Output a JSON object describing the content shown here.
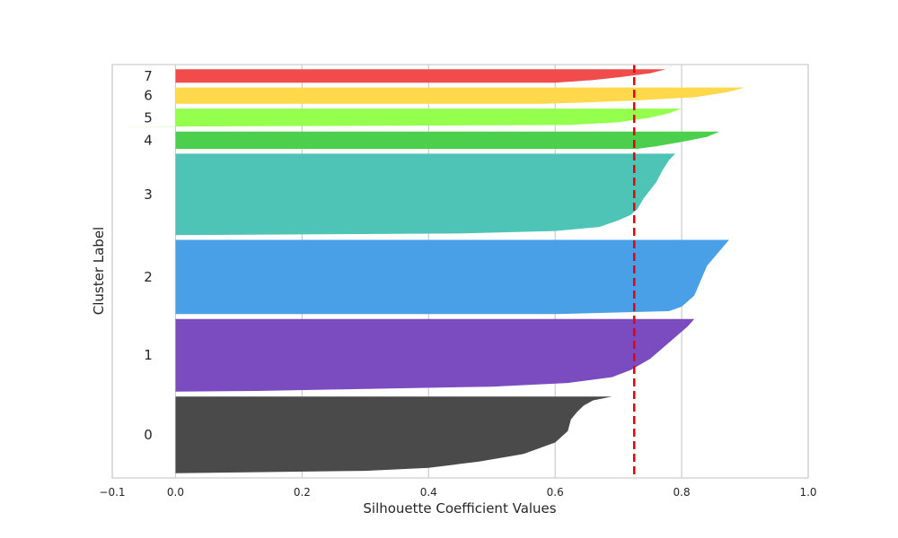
{
  "chart_data": {
    "type": "area",
    "title": "",
    "xlabel": "Silhouette Coefficient Values",
    "ylabel": "Cluster Label",
    "xlim": [
      -0.1,
      1.0
    ],
    "xticks": [
      "−0.1",
      "0.0",
      "0.2",
      "0.4",
      "0.6",
      "0.8",
      "1.0"
    ],
    "xtick_values": [
      -0.1,
      0.0,
      0.2,
      0.4,
      0.6,
      0.8,
      1.0
    ],
    "grid": true,
    "average_silhouette": 0.725,
    "average_line_color": "#e3000f",
    "clusters": [
      {
        "label": "0",
        "color": "#4a4a4a",
        "size": 160,
        "max": 0.69,
        "profile": [
          [
            0.0,
            0.69
          ],
          [
            0.05,
            0.66
          ],
          [
            0.12,
            0.645
          ],
          [
            0.2,
            0.635
          ],
          [
            0.3,
            0.625
          ],
          [
            0.45,
            0.62
          ],
          [
            0.6,
            0.6
          ],
          [
            0.75,
            0.55
          ],
          [
            0.85,
            0.48
          ],
          [
            0.93,
            0.4
          ],
          [
            0.97,
            0.3
          ],
          [
            1.0,
            0.0
          ]
        ]
      },
      {
        "label": "1",
        "color": "#7b4cbf",
        "size": 152,
        "max": 0.82,
        "profile": [
          [
            0.0,
            0.82
          ],
          [
            0.1,
            0.81
          ],
          [
            0.25,
            0.79
          ],
          [
            0.4,
            0.77
          ],
          [
            0.55,
            0.75
          ],
          [
            0.7,
            0.72
          ],
          [
            0.8,
            0.69
          ],
          [
            0.88,
            0.62
          ],
          [
            0.93,
            0.5
          ],
          [
            0.97,
            0.25
          ],
          [
            0.99,
            0.13
          ],
          [
            1.0,
            0.0
          ]
        ]
      },
      {
        "label": "2",
        "color": "#4aa0e6",
        "size": 155,
        "max": 0.875,
        "profile": [
          [
            0.0,
            0.875
          ],
          [
            0.15,
            0.86
          ],
          [
            0.35,
            0.84
          ],
          [
            0.55,
            0.83
          ],
          [
            0.75,
            0.82
          ],
          [
            0.9,
            0.8
          ],
          [
            0.96,
            0.78
          ],
          [
            1.0,
            0.6
          ]
        ]
      },
      {
        "label": "3",
        "color": "#4ec4b6",
        "size": 170,
        "max": 0.79,
        "profile": [
          [
            0.0,
            0.79
          ],
          [
            0.08,
            0.78
          ],
          [
            0.2,
            0.77
          ],
          [
            0.35,
            0.76
          ],
          [
            0.55,
            0.74
          ],
          [
            0.68,
            0.73
          ],
          [
            0.75,
            0.72
          ],
          [
            0.82,
            0.7
          ],
          [
            0.9,
            0.67
          ],
          [
            0.95,
            0.6
          ],
          [
            0.98,
            0.45
          ],
          [
            1.0,
            0.0
          ]
        ]
      },
      {
        "label": "4",
        "color": "#4ccf4c",
        "size": 36,
        "max": 0.86,
        "profile": [
          [
            0.0,
            0.86
          ],
          [
            0.3,
            0.84
          ],
          [
            0.6,
            0.8
          ],
          [
            0.85,
            0.76
          ],
          [
            1.0,
            0.73
          ]
        ]
      },
      {
        "label": "5",
        "color": "#94ff4c",
        "size": 38,
        "max": 0.8,
        "profile": [
          [
            0.0,
            0.8
          ],
          [
            0.25,
            0.78
          ],
          [
            0.5,
            0.75
          ],
          [
            0.75,
            0.7
          ],
          [
            0.9,
            0.62
          ],
          [
            1.0,
            -0.1
          ]
        ]
      },
      {
        "label": "6",
        "color": "#ffd84c",
        "size": 34,
        "max": 0.9,
        "profile": [
          [
            0.0,
            0.9
          ],
          [
            0.3,
            0.87
          ],
          [
            0.6,
            0.82
          ],
          [
            0.8,
            0.72
          ],
          [
            0.9,
            0.66
          ],
          [
            1.0,
            0.58
          ]
        ]
      },
      {
        "label": "7",
        "color": "#f04c4c",
        "size": 28,
        "max": 0.775,
        "profile": [
          [
            0.0,
            0.775
          ],
          [
            0.3,
            0.75
          ],
          [
            0.6,
            0.7
          ],
          [
            0.8,
            0.66
          ],
          [
            1.0,
            0.6
          ]
        ]
      }
    ]
  }
}
